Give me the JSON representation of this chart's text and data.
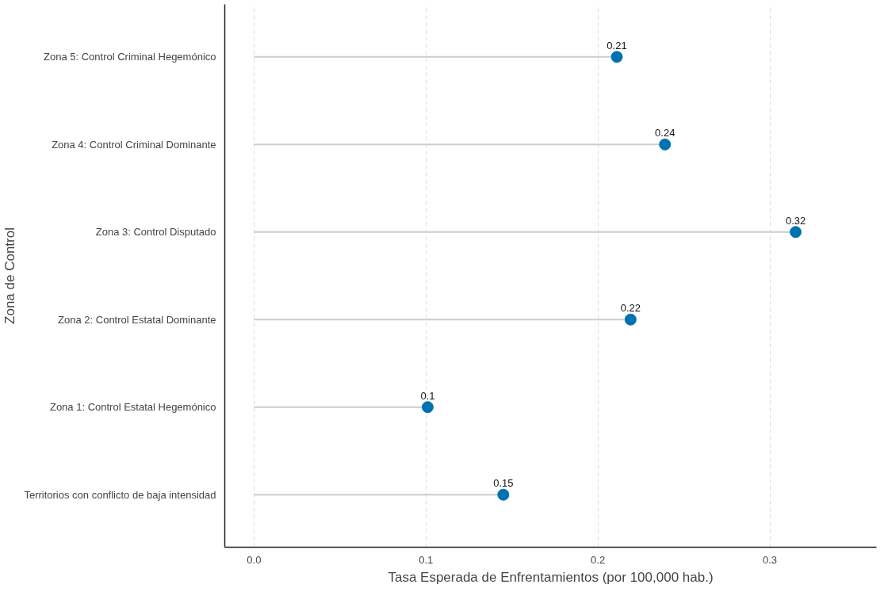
{
  "chart_data": {
    "type": "lollipop",
    "orientation": "horizontal",
    "xlabel": "Tasa Esperada de Enfrentamientos (por 100,000 hab.)",
    "ylabel": "Zona de Control",
    "categories": [
      "Zona 5: Control Criminal Hegemónico",
      "Zona 4: Control Criminal Dominante",
      "Zona 3: Control Disputado",
      "Zona 2: Control Estatal Dominante",
      "Zona 1: Control Estatal Hegemónico",
      "Territorios con conflicto de baja intensidad"
    ],
    "values": [
      0.211,
      0.239,
      0.315,
      0.219,
      0.101,
      0.145
    ],
    "value_labels": [
      "0.21",
      "0.24",
      "0.32",
      "0.22",
      "0.1",
      "0.15"
    ],
    "color": "#0072b2",
    "xlim": [
      -0.017,
      0.362
    ],
    "xticks": [
      {
        "value": 0,
        "label": "0.0"
      },
      0.1,
      0.2,
      0.3
    ],
    "grid": "x",
    "marker": "circle"
  }
}
